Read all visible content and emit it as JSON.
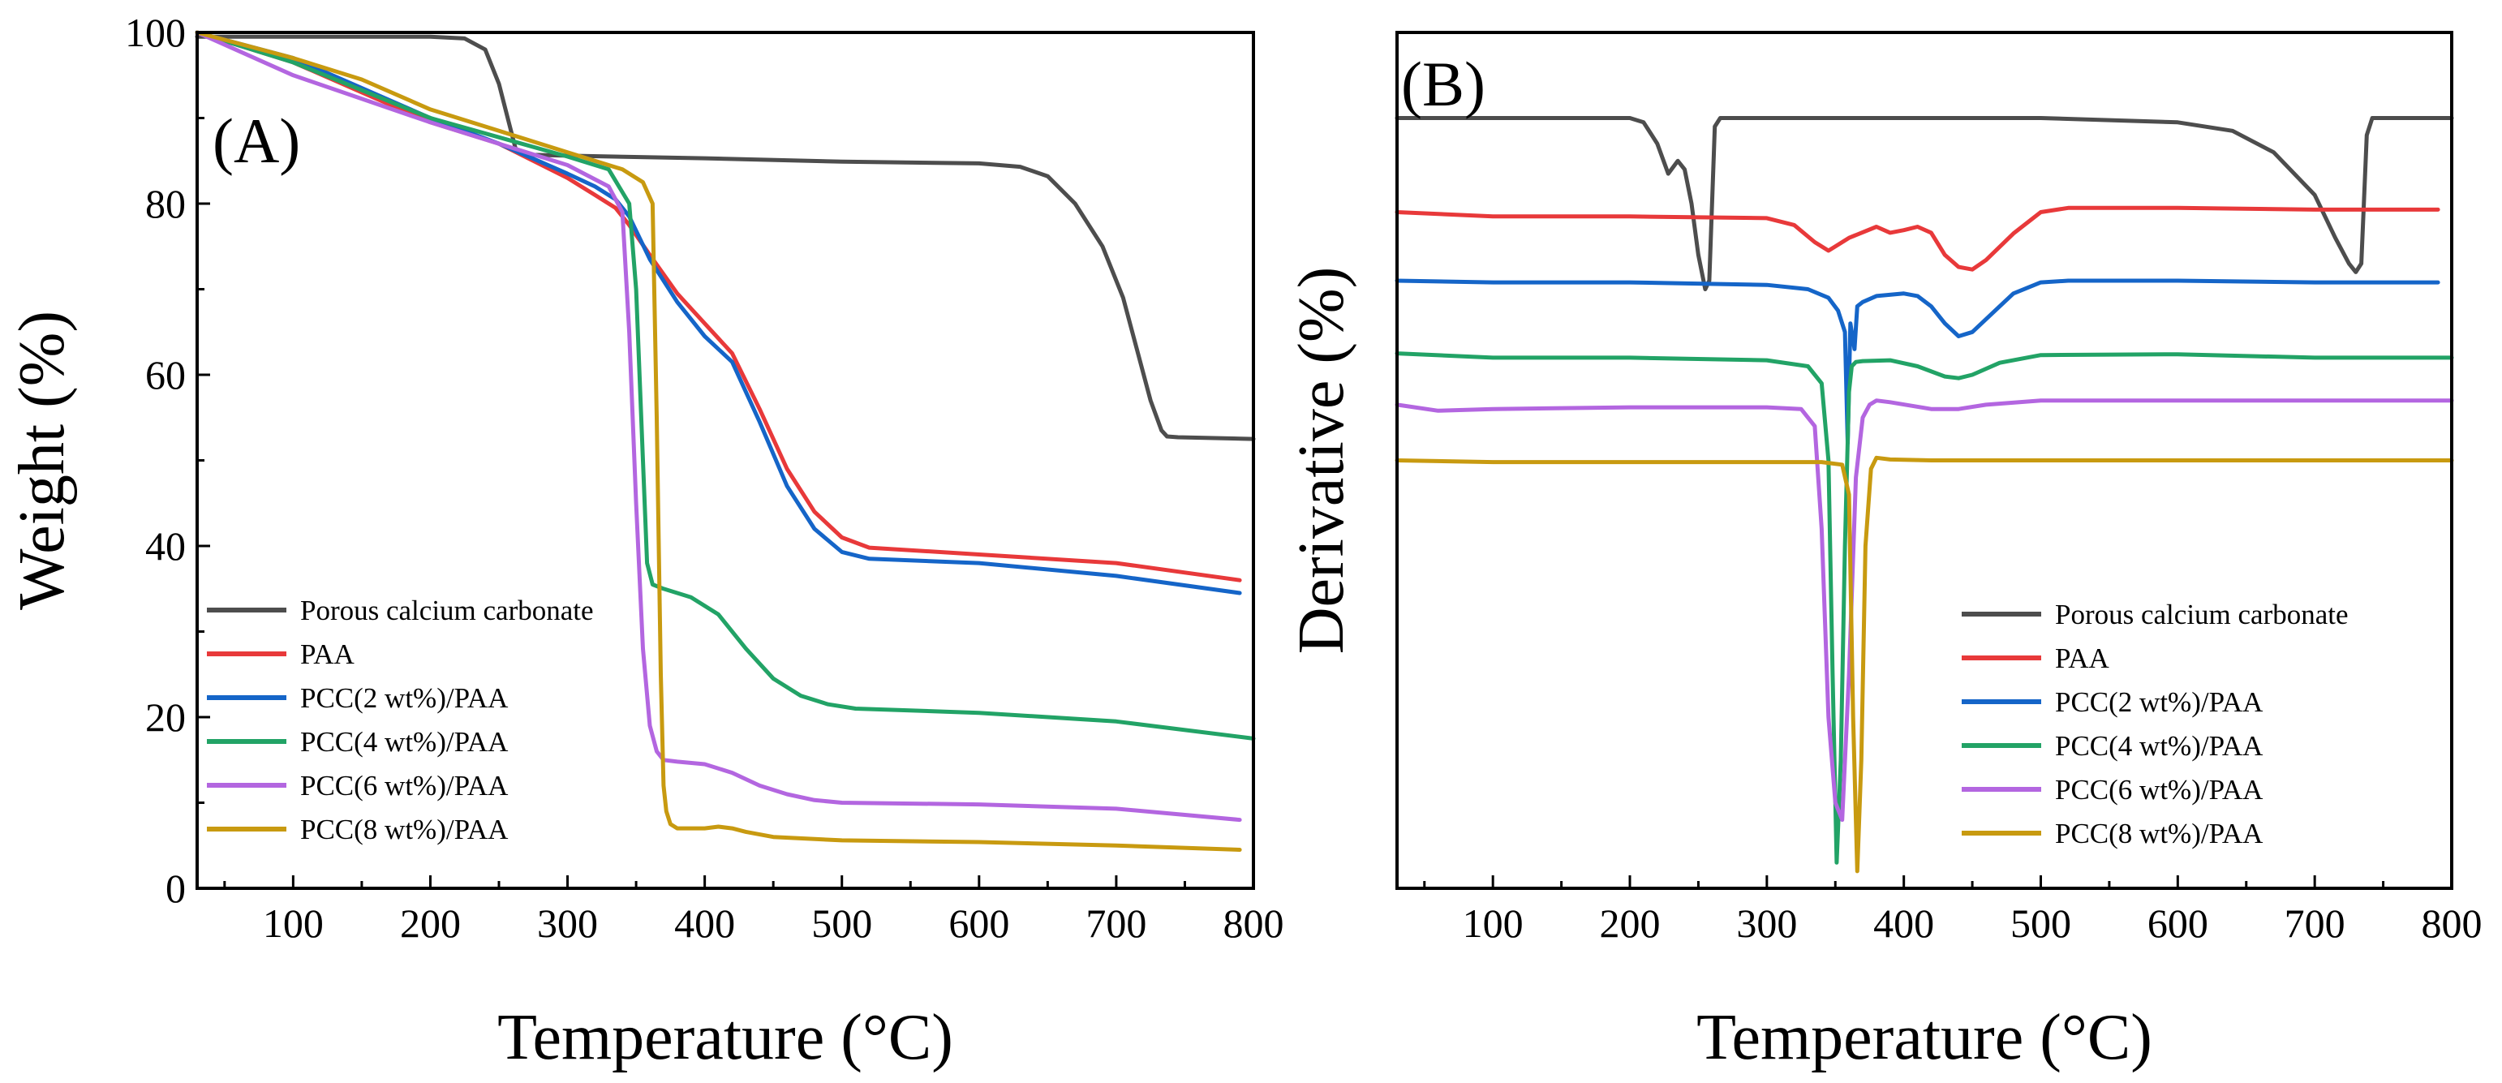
{
  "chart_data": [
    {
      "type": "line",
      "panel_label": "(A)",
      "xlabel": "Temperature (°C)",
      "ylabel": "Weight (%)",
      "xlim": [
        30,
        800
      ],
      "ylim": [
        0,
        100
      ],
      "xticks": [
        100,
        200,
        300,
        400,
        500,
        600,
        700,
        800
      ],
      "yticks": [
        0,
        20,
        40,
        60,
        80,
        100
      ],
      "legend_position": "lower-left",
      "series": [
        {
          "name": "Porous calcium carbonate",
          "color": "#4d4d4d",
          "x": [
            30,
            100,
            200,
            225,
            240,
            250,
            258,
            262,
            266,
            275,
            300,
            400,
            500,
            600,
            630,
            650,
            670,
            690,
            705,
            715,
            725,
            733,
            737,
            745,
            800
          ],
          "y": [
            99.5,
            99.5,
            99.5,
            99.3,
            98,
            94,
            89,
            86.5,
            85.8,
            85.7,
            85.6,
            85.3,
            84.9,
            84.7,
            84.3,
            83.2,
            80,
            75,
            69,
            63,
            57,
            53.5,
            52.8,
            52.7,
            52.5
          ]
        },
        {
          "name": "PAA",
          "color": "#e8393a",
          "x": [
            30,
            100,
            150,
            200,
            250,
            300,
            320,
            335,
            345,
            360,
            380,
            400,
            420,
            440,
            460,
            480,
            500,
            520,
            600,
            700,
            790
          ],
          "y": [
            100,
            96.5,
            93,
            89.5,
            87,
            83,
            81,
            79.5,
            77.5,
            74,
            69.5,
            66,
            62.5,
            56,
            49,
            44,
            41,
            39.8,
            39,
            38,
            36
          ]
        },
        {
          "name": "PCC(2 wt%)/PAA",
          "color": "#1565c8",
          "x": [
            30,
            100,
            150,
            200,
            250,
            300,
            320,
            335,
            345,
            360,
            380,
            400,
            420,
            440,
            460,
            480,
            500,
            520,
            600,
            700,
            790
          ],
          "y": [
            100,
            97,
            93.5,
            90,
            87,
            83.5,
            82,
            80.5,
            78.5,
            73.5,
            68.5,
            64.5,
            61.5,
            54.5,
            47,
            42,
            39.3,
            38.5,
            38,
            36.5,
            34.5
          ]
        },
        {
          "name": "PCC(4 wt%)/PAA",
          "color": "#22a366",
          "x": [
            30,
            100,
            200,
            300,
            330,
            345,
            350,
            355,
            358,
            362,
            370,
            390,
            410,
            430,
            450,
            470,
            490,
            510,
            600,
            700,
            800
          ],
          "y": [
            100,
            96.5,
            90,
            85.5,
            84,
            80,
            70,
            50,
            38,
            35.5,
            35,
            34,
            32,
            28,
            24.5,
            22.5,
            21.5,
            21,
            20.5,
            19.5,
            17.5
          ]
        },
        {
          "name": "PCC(6 wt%)/PAA",
          "color": "#b366e0",
          "x": [
            30,
            100,
            200,
            300,
            330,
            340,
            345,
            350,
            355,
            360,
            365,
            370,
            380,
            400,
            420,
            440,
            460,
            480,
            500,
            600,
            700,
            790
          ],
          "y": [
            100,
            95,
            89.5,
            84.5,
            82,
            79,
            65,
            45,
            28,
            19,
            16,
            15,
            14.8,
            14.5,
            13.5,
            12,
            11,
            10.3,
            10,
            9.8,
            9.3,
            8
          ]
        },
        {
          "name": "PCC(8 wt%)/PAA",
          "color": "#c89a10",
          "x": [
            30,
            100,
            150,
            200,
            250,
            300,
            340,
            355,
            362,
            365,
            368,
            370,
            372,
            375,
            380,
            400,
            410,
            420,
            430,
            450,
            500,
            600,
            700,
            790
          ],
          "y": [
            100,
            97,
            94.5,
            91,
            88.5,
            86,
            84,
            82.5,
            80,
            55,
            25,
            12,
            9,
            7.5,
            7,
            7,
            7.2,
            7,
            6.6,
            6,
            5.6,
            5.4,
            5,
            4.5
          ]
        }
      ]
    },
    {
      "type": "line",
      "panel_label": "(B)",
      "xlabel": "Temperature (°C)",
      "ylabel": "Derivative (%)",
      "xlim": [
        30,
        800
      ],
      "ylim": [
        0,
        100
      ],
      "xticks": [
        100,
        200,
        300,
        400,
        500,
        600,
        700,
        800
      ],
      "yticks": [],
      "legend_position": "lower-right",
      "series": [
        {
          "name": "Porous calcium carbonate",
          "color": "#4d4d4d",
          "x": [
            30,
            200,
            210,
            220,
            228,
            235,
            240,
            245,
            250,
            255,
            258,
            262,
            266,
            275,
            400,
            500,
            600,
            640,
            670,
            700,
            715,
            725,
            730,
            734,
            738,
            742,
            800
          ],
          "y": [
            90,
            90,
            89.5,
            87,
            83.5,
            85,
            84,
            80,
            74,
            70,
            71,
            89,
            90,
            90,
            90,
            90,
            89.5,
            88.5,
            86,
            81,
            76,
            73,
            72,
            73,
            88,
            90,
            90
          ]
        },
        {
          "name": "PAA",
          "color": "#e8393a",
          "x": [
            30,
            100,
            200,
            300,
            320,
            335,
            345,
            350,
            355,
            360,
            380,
            390,
            400,
            410,
            420,
            430,
            440,
            450,
            460,
            480,
            500,
            520,
            600,
            700,
            790
          ],
          "y": [
            79,
            78.5,
            78.5,
            78.3,
            77.5,
            75.5,
            74.5,
            75,
            75.5,
            76,
            77.3,
            76.6,
            76.9,
            77.3,
            76.6,
            74,
            72.6,
            72.3,
            73.4,
            76.5,
            79,
            79.5,
            79.5,
            79.3,
            79.3
          ]
        },
        {
          "name": "PCC(2 wt%)/PAA",
          "color": "#1565c8",
          "x": [
            30,
            100,
            200,
            300,
            330,
            345,
            352,
            357,
            359,
            361,
            364,
            366,
            370,
            380,
            400,
            410,
            420,
            430,
            440,
            450,
            460,
            480,
            500,
            520,
            600,
            700,
            790
          ],
          "y": [
            71,
            70.8,
            70.8,
            70.5,
            70,
            69,
            67.5,
            65,
            52,
            66,
            63,
            68,
            68.5,
            69.2,
            69.5,
            69.2,
            68,
            66,
            64.5,
            65,
            66.5,
            69.5,
            70.8,
            71,
            71,
            70.8,
            70.8
          ]
        },
        {
          "name": "PCC(4 wt%)/PAA",
          "color": "#22a366",
          "x": [
            30,
            100,
            200,
            300,
            330,
            340,
            345,
            348,
            351,
            354,
            357,
            360,
            362,
            365,
            370,
            390,
            410,
            430,
            440,
            450,
            470,
            500,
            600,
            700,
            800
          ],
          "y": [
            62.5,
            62,
            62,
            61.7,
            61,
            59,
            50,
            25,
            3,
            15,
            40,
            58,
            61,
            61.5,
            61.6,
            61.7,
            61,
            59.8,
            59.6,
            60,
            61.4,
            62.3,
            62.4,
            62,
            62
          ]
        },
        {
          "name": "PCC(6 wt%)/PAA",
          "color": "#b366e0",
          "x": [
            30,
            60,
            100,
            200,
            300,
            325,
            335,
            340,
            345,
            350,
            355,
            360,
            365,
            370,
            375,
            380,
            390,
            420,
            440,
            460,
            500,
            600,
            700,
            800
          ],
          "y": [
            56.5,
            55.8,
            56,
            56.2,
            56.2,
            56,
            54,
            42,
            20,
            10,
            8,
            25,
            48,
            55,
            56.5,
            57,
            56.8,
            56,
            56,
            56.5,
            57,
            57,
            57,
            57
          ]
        },
        {
          "name": "PCC(8 wt%)/PAA",
          "color": "#c89a10",
          "x": [
            30,
            100,
            200,
            300,
            340,
            355,
            360,
            363,
            366,
            369,
            372,
            376,
            380,
            390,
            420,
            500,
            600,
            700,
            800
          ],
          "y": [
            50,
            49.8,
            49.8,
            49.8,
            49.8,
            49.5,
            46,
            20,
            2,
            15,
            40,
            49,
            50.3,
            50.1,
            50,
            50,
            50,
            50,
            50
          ]
        }
      ]
    }
  ]
}
